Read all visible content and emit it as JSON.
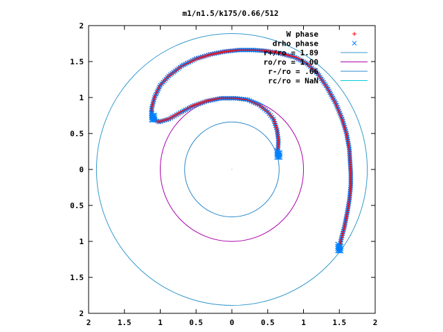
{
  "chart_data": {
    "type": "scatter",
    "title": "m1/n1.5/k175/0.66/512",
    "xlim": [
      -2,
      2
    ],
    "ylim": [
      -2,
      2
    ],
    "x_ticks": [
      -2,
      -1.5,
      -1,
      -0.5,
      0,
      0.5,
      1,
      1.5,
      2
    ],
    "y_ticks": [
      -2,
      -1.5,
      -1,
      -0.5,
      0,
      0.5,
      1,
      1.5,
      2
    ],
    "x_tick_labels": [
      "2",
      "1.5",
      "1",
      "0.5",
      "0",
      "0.5",
      "1",
      "1.5",
      "2"
    ],
    "y_tick_labels": [
      "2",
      "1.5",
      "1",
      "0.5",
      "0",
      "0.5",
      "1",
      "1.5",
      "2"
    ],
    "grid": false,
    "legend_position": "top-right",
    "series": [
      {
        "name": "W phase",
        "kind": "points",
        "marker": "plus",
        "color": "#ff0000"
      },
      {
        "name": "drho phase",
        "kind": "points",
        "marker": "cross",
        "color": "#0080ff"
      },
      {
        "name": "r+/ro = 1.89",
        "kind": "circle",
        "radius": 1.89,
        "color": "#3399cc"
      },
      {
        "name": "ro/ro = 1.00",
        "kind": "circle",
        "radius": 1.0,
        "color": "#aa00aa"
      },
      {
        "name": "r-/ro = .66",
        "kind": "circle",
        "radius": 0.66,
        "color": "#2a88cc"
      },
      {
        "name": "rc/ro = NaN",
        "kind": "circle",
        "radius": null,
        "color": "#00ccdd"
      }
    ],
    "spiral_points": [
      [
        1.5,
        -1.08
      ],
      [
        1.53,
        -0.95
      ],
      [
        1.57,
        -0.8
      ],
      [
        1.61,
        -0.6
      ],
      [
        1.64,
        -0.42
      ],
      [
        1.66,
        -0.22
      ],
      [
        1.66,
        -0.05
      ],
      [
        1.65,
        0.1
      ],
      [
        1.64,
        0.28
      ],
      [
        1.6,
        0.5
      ],
      [
        1.54,
        0.7
      ],
      [
        1.45,
        0.92
      ],
      [
        1.33,
        1.14
      ],
      [
        1.2,
        1.33
      ],
      [
        1.05,
        1.47
      ],
      [
        0.88,
        1.56
      ],
      [
        0.65,
        1.62
      ],
      [
        0.45,
        1.65
      ],
      [
        0.3,
        1.66
      ],
      [
        0.1,
        1.66
      ],
      [
        -0.1,
        1.64
      ],
      [
        -0.3,
        1.6
      ],
      [
        -0.5,
        1.54
      ],
      [
        -0.7,
        1.44
      ],
      [
        -0.88,
        1.3
      ],
      [
        -1.0,
        1.17
      ],
      [
        -1.08,
        1.0
      ],
      [
        -1.12,
        0.85
      ],
      [
        -1.12,
        0.72
      ],
      [
        -1.02,
        0.66
      ],
      [
        -0.88,
        0.7
      ],
      [
        -0.72,
        0.79
      ],
      [
        -0.55,
        0.88
      ],
      [
        -0.35,
        0.95
      ],
      [
        -0.15,
        0.99
      ],
      [
        0.05,
        0.99
      ],
      [
        0.22,
        0.97
      ],
      [
        0.38,
        0.9
      ],
      [
        0.5,
        0.8
      ],
      [
        0.58,
        0.7
      ],
      [
        0.63,
        0.55
      ],
      [
        0.65,
        0.4
      ],
      [
        0.64,
        0.22
      ]
    ]
  }
}
